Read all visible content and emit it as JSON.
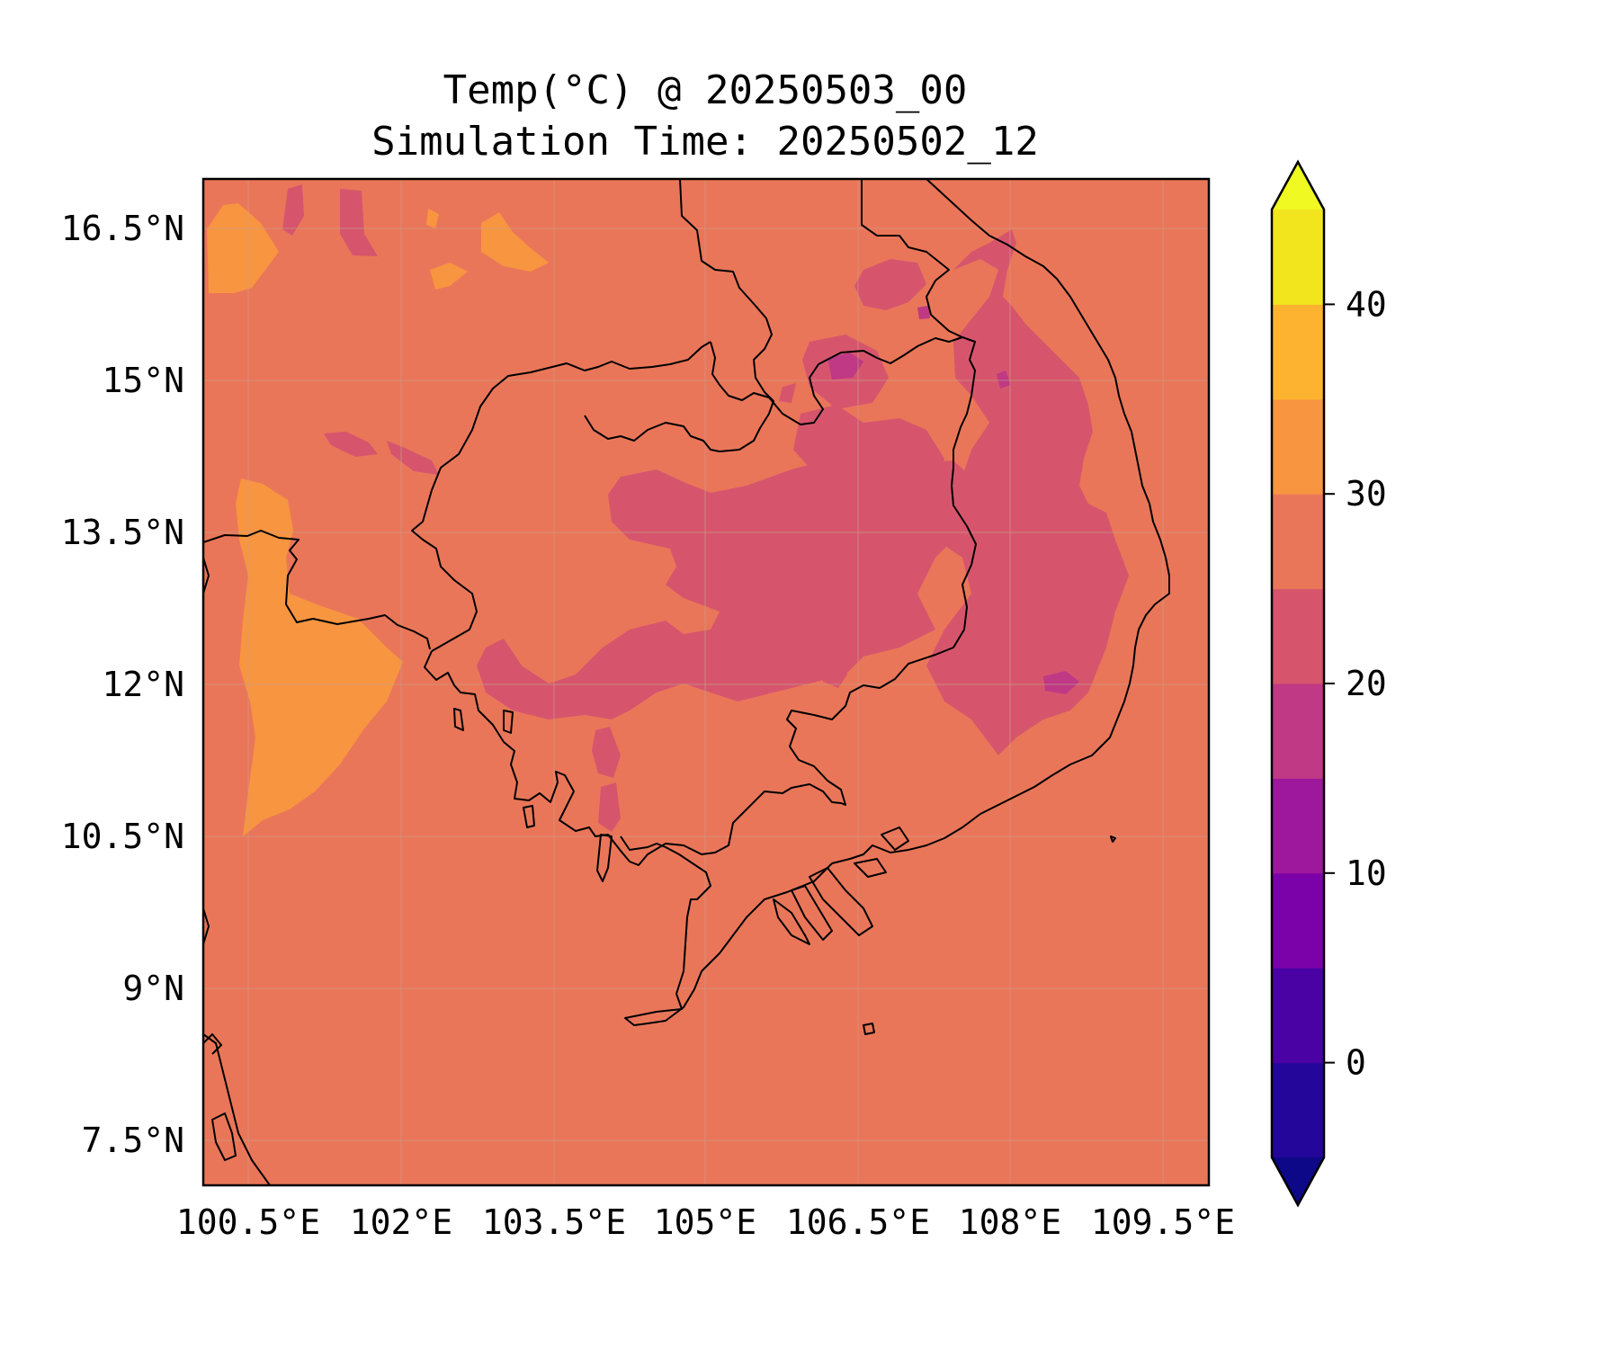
{
  "title": {
    "line1": "Temp(°C) @ 20250503_00",
    "line2": "Simulation Time: 20250502_12"
  },
  "map": {
    "lon_range": [
      100.5,
      110.0
    ],
    "lat_range": [
      7.0,
      16.9
    ],
    "x_ticks": [
      {
        "value": 100.5,
        "label": "100.5°E"
      },
      {
        "value": 102.0,
        "label": "102°E"
      },
      {
        "value": 103.5,
        "label": "103.5°E"
      },
      {
        "value": 105.0,
        "label": "105°E"
      },
      {
        "value": 106.5,
        "label": "106.5°E"
      },
      {
        "value": 108.0,
        "label": "108°E"
      },
      {
        "value": 109.5,
        "label": "109.5°E"
      }
    ],
    "y_ticks": [
      {
        "value": 16.5,
        "label": "16.5°N"
      },
      {
        "value": 15.0,
        "label": "15°N"
      },
      {
        "value": 13.5,
        "label": "13.5°N"
      },
      {
        "value": 12.0,
        "label": "12°N"
      },
      {
        "value": 10.5,
        "label": "10.5°N"
      },
      {
        "value": 9.0,
        "label": "9°N"
      },
      {
        "value": 7.5,
        "label": "7.5°N"
      }
    ],
    "gridlines": true,
    "background_color": "#ea7659"
  },
  "colorbar": {
    "range": [
      -5,
      45
    ],
    "extend": "both",
    "levels": [
      {
        "from": -5,
        "to": 0,
        "color": "#24069a"
      },
      {
        "from": 0,
        "to": 5,
        "color": "#4a02a4"
      },
      {
        "from": 5,
        "to": 10,
        "color": "#7a02a8"
      },
      {
        "from": 10,
        "to": 15,
        "color": "#9e189d"
      },
      {
        "from": 15,
        "to": 20,
        "color": "#bf3984"
      },
      {
        "from": 20,
        "to": 25,
        "color": "#d6556d"
      },
      {
        "from": 25,
        "to": 30,
        "color": "#ea7659"
      },
      {
        "from": 30,
        "to": 35,
        "color": "#f89540"
      },
      {
        "from": 35,
        "to": 40,
        "color": "#fdb32f"
      },
      {
        "from": 40,
        "to": 45,
        "color": "#f2e51e"
      }
    ],
    "under_color": "#0d0887",
    "over_color": "#f0f921",
    "ticks": [
      {
        "value": 0,
        "label": "0"
      },
      {
        "value": 10,
        "label": "10"
      },
      {
        "value": 20,
        "label": "20"
      },
      {
        "value": 30,
        "label": "30"
      },
      {
        "value": 40,
        "label": "40"
      }
    ]
  }
}
